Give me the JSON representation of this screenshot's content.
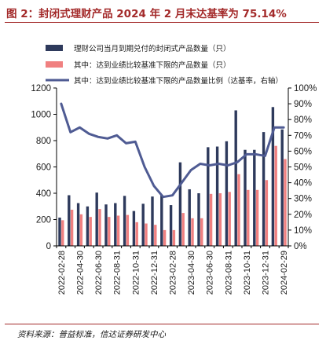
{
  "figure": {
    "title": "图 2：封闭式理财产品 2024 年 2 月末达基率为 75.14%",
    "source": "资料来源：普益标准，信达证券研发中心"
  },
  "colors": {
    "bar_total": "#2e3a5c",
    "bar_met": "#f08080",
    "line_ratio": "#4f5b93",
    "axis": "#000000",
    "title": "#a32a2a"
  },
  "chart_data": {
    "type": "bar",
    "x_ticks": [
      "2022-02-28",
      "2022-04-30",
      "2022-06-30",
      "2022-08-31",
      "2022-10-31",
      "2022-12-31",
      "2023-02-28",
      "2023-04-30",
      "2023-06-30",
      "2023-08-31",
      "2023-10-31",
      "2023-12-31",
      "2024-02-29"
    ],
    "categories": [
      "2022-02",
      "2022-03",
      "2022-04",
      "2022-05",
      "2022-06",
      "2022-07",
      "2022-08",
      "2022-09",
      "2022-10",
      "2022-11",
      "2022-12",
      "2023-01",
      "2023-02",
      "2023-03",
      "2023-04",
      "2023-05",
      "2023-06",
      "2023-07",
      "2023-08",
      "2023-09",
      "2023-10",
      "2023-11",
      "2023-12",
      "2024-01",
      "2024-02"
    ],
    "series": [
      {
        "name": "理财公司当月到期兑付的封闭式产品数量（只）",
        "kind": "bar",
        "axis": "left",
        "values": [
          215,
          385,
          325,
          300,
          405,
          315,
          325,
          380,
          265,
          320,
          375,
          385,
          310,
          635,
          430,
          400,
          750,
          755,
          795,
          1030,
          730,
          730,
          865,
          1055,
          885
        ]
      },
      {
        "name": "其中：达到业绩比较基准下限的产品数量（只）",
        "kind": "bar",
        "axis": "left",
        "values": [
          195,
          275,
          240,
          220,
          280,
          220,
          230,
          235,
          180,
          170,
          160,
          120,
          120,
          250,
          210,
          210,
          395,
          400,
          410,
          545,
          425,
          425,
          500,
          760,
          660
        ]
      },
      {
        "name": "其中：达到业绩比较基准下限的产品数量比例（达基率，右轴）",
        "kind": "line",
        "axis": "right",
        "values": [
          90,
          72,
          75,
          71,
          69,
          68,
          70,
          65,
          66,
          50,
          38,
          31,
          32,
          40,
          48,
          52,
          51,
          52,
          51,
          53,
          58,
          58,
          57,
          75,
          75
        ]
      }
    ],
    "left_axis": {
      "ylim": [
        0,
        1200
      ],
      "ticks": [
        "0",
        "200",
        "400",
        "600",
        "800",
        "1000",
        "1200"
      ]
    },
    "right_axis": {
      "ylim": [
        0,
        100
      ],
      "ticks": [
        "0%",
        "10%",
        "20%",
        "30%",
        "40%",
        "50%",
        "60%",
        "70%",
        "80%",
        "90%",
        "100%"
      ]
    },
    "grid": false,
    "legend_position": "top"
  }
}
